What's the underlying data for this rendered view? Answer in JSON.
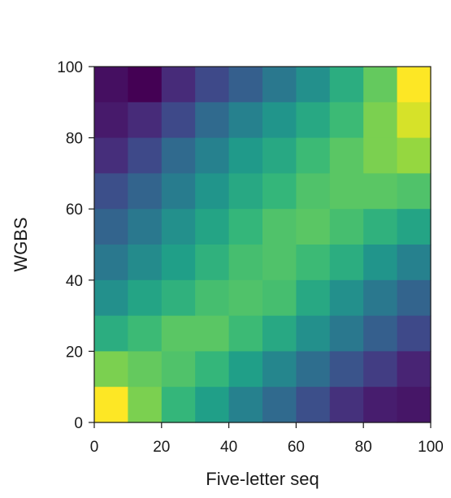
{
  "chart_data": {
    "type": "heatmap",
    "title": "",
    "xlabel": "Five-letter seq",
    "ylabel": "WGBS",
    "xlim": [
      0,
      100
    ],
    "ylim": [
      0,
      100
    ],
    "xticks": [
      "0",
      "20",
      "40",
      "60",
      "80",
      "100"
    ],
    "yticks": [
      "0",
      "20",
      "40",
      "60",
      "80",
      "100"
    ],
    "colormap": "viridis",
    "bin_size": 10,
    "grid": false,
    "legend": "none",
    "matrix_rows_top_to_bottom": [
      [
        0.04,
        0.0,
        0.12,
        0.22,
        0.3,
        0.4,
        0.5,
        0.62,
        0.76,
        1.0
      ],
      [
        0.07,
        0.12,
        0.22,
        0.34,
        0.44,
        0.52,
        0.6,
        0.68,
        0.8,
        0.94
      ],
      [
        0.13,
        0.22,
        0.34,
        0.44,
        0.54,
        0.6,
        0.68,
        0.74,
        0.8,
        0.84
      ],
      [
        0.24,
        0.32,
        0.42,
        0.52,
        0.6,
        0.66,
        0.72,
        0.74,
        0.74,
        0.72
      ],
      [
        0.32,
        0.4,
        0.5,
        0.58,
        0.66,
        0.72,
        0.74,
        0.7,
        0.64,
        0.58
      ],
      [
        0.4,
        0.48,
        0.56,
        0.64,
        0.7,
        0.72,
        0.68,
        0.62,
        0.52,
        0.44
      ],
      [
        0.5,
        0.58,
        0.64,
        0.7,
        0.72,
        0.7,
        0.6,
        0.5,
        0.4,
        0.32
      ],
      [
        0.62,
        0.68,
        0.74,
        0.74,
        0.68,
        0.6,
        0.5,
        0.4,
        0.3,
        0.22
      ],
      [
        0.8,
        0.76,
        0.72,
        0.66,
        0.56,
        0.46,
        0.36,
        0.26,
        0.18,
        0.1
      ],
      [
        1.0,
        0.8,
        0.66,
        0.56,
        0.44,
        0.34,
        0.24,
        0.14,
        0.08,
        0.06
      ]
    ]
  }
}
